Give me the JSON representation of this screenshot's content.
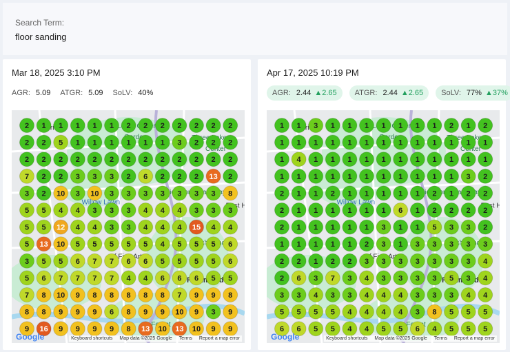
{
  "search": {
    "label": "Search Term:",
    "value": "floor sanding"
  },
  "map_credits": {
    "shortcuts": "Keyboard shortcuts",
    "data": "Map data ©2025 Google",
    "terms": "Terms",
    "report": "Report a map error"
  },
  "google_logo": "Google",
  "map_places": [
    {
      "text": "Henrico",
      "style": "",
      "col": 1.2,
      "row": 0.1
    },
    {
      "text": "Lewis Ginter",
      "style": "green",
      "col": 5.9,
      "row": 0.0
    },
    {
      "text": "Garden",
      "style": "green",
      "col": 6.3,
      "row": 0.65
    },
    {
      "text": "Three Lakes",
      "style": "green",
      "col": 10.3,
      "row": 0.7
    },
    {
      "text": "Center",
      "style": "green",
      "col": 11.1,
      "row": 1.35
    },
    {
      "text": "Richmond Raceway",
      "style": "green",
      "col": 8.7,
      "row": 3.9
    },
    {
      "text": "Willow Lawn",
      "style": "blue",
      "col": 3.8,
      "row": 4.5
    },
    {
      "text": "East H",
      "style": "",
      "col": 12.3,
      "row": 4.7
    },
    {
      "text": "- Richmond",
      "style": "green",
      "col": 10.2,
      "row": 6.9
    },
    {
      "text": "of Fine Arts",
      "style": "",
      "col": 5.5,
      "row": 7.7
    },
    {
      "text": "Richmond",
      "style": "bold",
      "col": 10.0,
      "row": 9.1
    },
    {
      "text": "Forest",
      "style": "green",
      "col": 7.9,
      "row": 11.7
    }
  ],
  "legend_colors": {
    "1": "#43c21f",
    "2": "#43c21f",
    "3": "#6ccd1c",
    "4": "#9fd41d",
    "5": "#9fd41d",
    "6": "#c0d92a",
    "7": "#c0d92a",
    "8": "#f2c11f",
    "9": "#f2c11f",
    "10": "#f2c11f",
    "12": "#f0a81f",
    "13": "#e86b1f",
    "15": "#e25a1f",
    "16": "#e25a1f"
  },
  "panels": [
    {
      "timestamp": "Mar 18, 2025 3:10 PM",
      "metrics": [
        {
          "label": "AGR:",
          "value": "5.09",
          "delta": ""
        },
        {
          "label": "ATGR:",
          "value": "5.09",
          "delta": ""
        },
        {
          "label": "SoLV:",
          "value": "40%",
          "delta": ""
        }
      ],
      "grid": [
        [
          2,
          1,
          1,
          1,
          1,
          1,
          2,
          2,
          2,
          2,
          2,
          2,
          2
        ],
        [
          2,
          2,
          5,
          1,
          1,
          1,
          1,
          1,
          1,
          3,
          2,
          2,
          2
        ],
        [
          2,
          2,
          2,
          2,
          2,
          2,
          2,
          2,
          2,
          2,
          2,
          2,
          2
        ],
        [
          7,
          2,
          2,
          3,
          3,
          3,
          2,
          6,
          2,
          2,
          2,
          13,
          2
        ],
        [
          3,
          2,
          10,
          3,
          10,
          3,
          3,
          3,
          3,
          3,
          3,
          3,
          8
        ],
        [
          5,
          5,
          4,
          4,
          3,
          3,
          3,
          4,
          4,
          4,
          3,
          3,
          3
        ],
        [
          5,
          5,
          12,
          4,
          4,
          3,
          3,
          4,
          4,
          4,
          15,
          4,
          4
        ],
        [
          5,
          13,
          10,
          5,
          5,
          5,
          5,
          5,
          4,
          5,
          5,
          5,
          6
        ],
        [
          3,
          5,
          5,
          6,
          7,
          7,
          6,
          6,
          5,
          5,
          5,
          5,
          6
        ],
        [
          5,
          6,
          7,
          7,
          7,
          7,
          4,
          4,
          6,
          6,
          6,
          5,
          5
        ],
        [
          7,
          8,
          10,
          9,
          8,
          8,
          8,
          8,
          8,
          7,
          9,
          9,
          8
        ],
        [
          8,
          8,
          9,
          9,
          9,
          6,
          8,
          9,
          9,
          10,
          9,
          3,
          9
        ],
        [
          9,
          16,
          9,
          9,
          9,
          9,
          8,
          13,
          10,
          13,
          10,
          9,
          9
        ]
      ]
    },
    {
      "timestamp": "Apr 17, 2025 10:19 PM",
      "metrics": [
        {
          "label": "AGR:",
          "value": "2.44",
          "delta": "2.65"
        },
        {
          "label": "ATGR:",
          "value": "2.44",
          "delta": "2.65"
        },
        {
          "label": "SoLV:",
          "value": "77%",
          "delta": "37%"
        }
      ],
      "grid": [
        [
          1,
          1,
          3,
          1,
          1,
          1,
          1,
          1,
          1,
          1,
          2,
          1,
          2
        ],
        [
          1,
          1,
          1,
          1,
          1,
          1,
          1,
          1,
          1,
          1,
          1,
          1,
          1
        ],
        [
          1,
          4,
          1,
          1,
          1,
          1,
          1,
          1,
          1,
          1,
          1,
          1,
          1
        ],
        [
          1,
          1,
          1,
          1,
          1,
          1,
          1,
          1,
          1,
          1,
          1,
          3,
          2
        ],
        [
          2,
          1,
          1,
          2,
          1,
          1,
          1,
          1,
          1,
          2,
          1,
          2,
          2
        ],
        [
          2,
          1,
          1,
          1,
          1,
          1,
          1,
          6,
          1,
          2,
          2,
          2,
          2
        ],
        [
          2,
          1,
          1,
          1,
          1,
          1,
          3,
          1,
          1,
          5,
          3,
          3,
          2
        ],
        [
          1,
          1,
          1,
          1,
          1,
          2,
          3,
          1,
          3,
          3,
          3,
          3,
          3
        ],
        [
          2,
          2,
          1,
          2,
          2,
          3,
          3,
          3,
          3,
          3,
          3,
          3,
          4
        ],
        [
          2,
          6,
          3,
          7,
          3,
          4,
          3,
          3,
          3,
          3,
          5,
          3,
          4
        ],
        [
          3,
          3,
          4,
          3,
          3,
          4,
          4,
          4,
          3,
          3,
          3,
          4,
          4
        ],
        [
          5,
          5,
          5,
          5,
          4,
          4,
          4,
          4,
          3,
          8,
          5,
          5,
          5
        ],
        [
          6,
          6,
          5,
          5,
          4,
          4,
          5,
          5,
          6,
          4,
          5,
          5,
          5
        ]
      ]
    }
  ]
}
